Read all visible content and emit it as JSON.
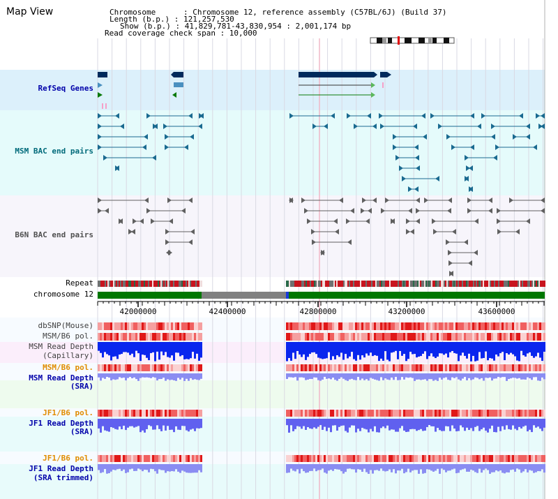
{
  "view_title": "Map View",
  "header": {
    "chromosome": "Chromosome      : Chromosome 12, reference assembly (C57BL/6J) (Build 37)",
    "length": "Length (b.p.) : 121,257,530",
    "show": "Show (b.p.) : 41,829,781-43,830,954 : 2,001,174 bp",
    "coverage": "Read coverage check span : 10,000"
  },
  "tracks": {
    "refseq": "RefSeq Genes",
    "msm_bac": "MSM BAC end pairs",
    "b6n_bac": "B6N BAC end pairs",
    "repeat": "Repeat",
    "chromosome": "chromosome 12",
    "dbsnp": "dbSNP(Mouse)",
    "msm_b6_pol_1": "MSM/B6 pol.",
    "msm_depth_cap_1": "MSM Read Depth",
    "msm_depth_cap_2": "(Capillary)",
    "msm_b6_pol_2": "MSM/B6 pol.",
    "msm_depth_sra_1": "MSM Read Depth",
    "msm_depth_sra_2": "(SRA)",
    "jf1_b6_pol_1": "JF1/B6 pol.",
    "jf1_depth_sra_1": "JF1 Read Depth",
    "jf1_depth_sra_2": "(SRA)",
    "jf1_b6_pol_2": "JF1/B6 pol.",
    "jf1_depth_trim_1": "JF1 Read Depth",
    "jf1_depth_trim_2": "(SRA trimmed)"
  },
  "axis": {
    "ticks": [
      "42000000",
      "42400000",
      "42800000",
      "43200000",
      "43600000"
    ]
  },
  "colors": {
    "refseq_bg": "#dcf0fb",
    "msm_bac_bg": "#e5fbfb",
    "b6n_bac_bg": "#f7f5fb",
    "chromosome_bar": "#007700",
    "gap": "#808080",
    "gene": "#002a5c",
    "msm_pair": "#1a6a90",
    "b6n_pair": "#606060",
    "depth_blue": "#0a26ee",
    "depth_sra": "#8a8df2",
    "label_blue": "#0000aa",
    "label_teal": "#006a7a",
    "label_gray": "#505050",
    "label_orange": "#e08c00"
  }
}
